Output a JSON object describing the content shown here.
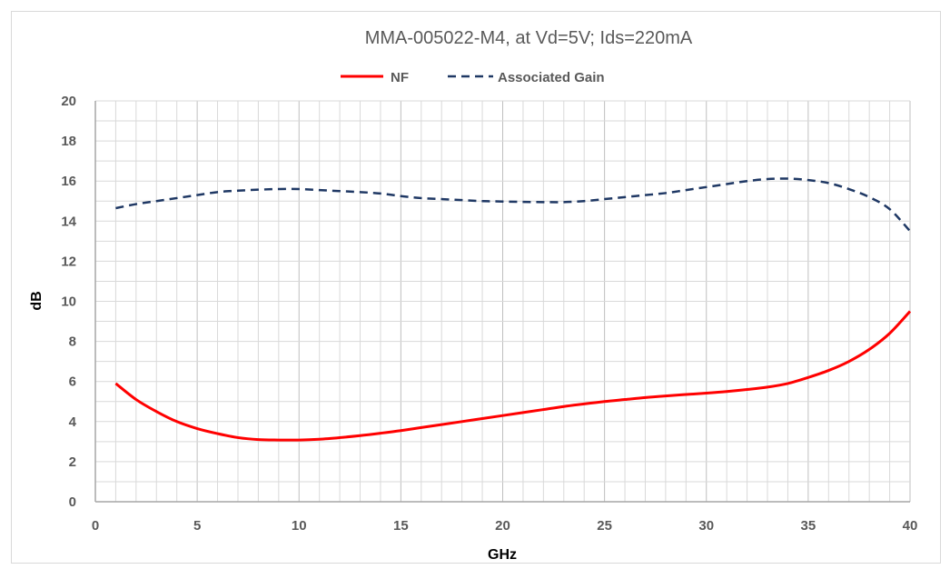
{
  "chart_data": {
    "type": "line",
    "title": "MMA-005022-M4, at Vd=5V; Ids=220mA",
    "xlabel": "GHz",
    "ylabel": "dB",
    "xlim": [
      0,
      40
    ],
    "ylim": [
      0,
      20
    ],
    "x_ticks": [
      "0",
      "5",
      "10",
      "15",
      "20",
      "25",
      "30",
      "35",
      "40"
    ],
    "y_ticks": [
      "0",
      "2",
      "4",
      "6",
      "8",
      "10",
      "12",
      "14",
      "16",
      "18",
      "20"
    ],
    "grid": true,
    "legend_position": "top-center",
    "series": [
      {
        "name": "NF",
        "color": "#ff0000",
        "style": "solid",
        "x": [
          1,
          2,
          3,
          4,
          5,
          6,
          7,
          8,
          9,
          10,
          11,
          12,
          13,
          14,
          15,
          16,
          17,
          18,
          19,
          20,
          21,
          22,
          23,
          24,
          25,
          26,
          27,
          28,
          29,
          30,
          31,
          32,
          33,
          34,
          35,
          36,
          37,
          38,
          39,
          40
        ],
        "values": [
          5.9,
          5.1,
          4.5,
          4.0,
          3.65,
          3.4,
          3.2,
          3.1,
          3.08,
          3.08,
          3.12,
          3.2,
          3.3,
          3.42,
          3.55,
          3.7,
          3.85,
          4.0,
          4.15,
          4.3,
          4.45,
          4.6,
          4.75,
          4.88,
          5.0,
          5.1,
          5.2,
          5.28,
          5.35,
          5.42,
          5.5,
          5.6,
          5.72,
          5.9,
          6.2,
          6.55,
          7.0,
          7.6,
          8.4,
          9.5
        ]
      },
      {
        "name": "Associated Gain",
        "color": "#1f3864",
        "style": "dashed",
        "x": [
          1,
          2,
          3,
          4,
          5,
          6,
          7,
          8,
          9,
          10,
          11,
          12,
          13,
          14,
          15,
          16,
          17,
          18,
          19,
          20,
          21,
          22,
          23,
          24,
          25,
          26,
          27,
          28,
          29,
          30,
          31,
          32,
          33,
          34,
          35,
          36,
          37,
          38,
          39,
          40
        ],
        "values": [
          14.65,
          14.85,
          15.0,
          15.15,
          15.3,
          15.45,
          15.52,
          15.57,
          15.6,
          15.6,
          15.55,
          15.5,
          15.45,
          15.38,
          15.25,
          15.15,
          15.1,
          15.05,
          15.0,
          14.98,
          14.96,
          14.95,
          14.95,
          15.0,
          15.1,
          15.2,
          15.3,
          15.4,
          15.55,
          15.7,
          15.85,
          16.0,
          16.1,
          16.12,
          16.05,
          15.9,
          15.6,
          15.2,
          14.6,
          13.5
        ]
      }
    ]
  }
}
